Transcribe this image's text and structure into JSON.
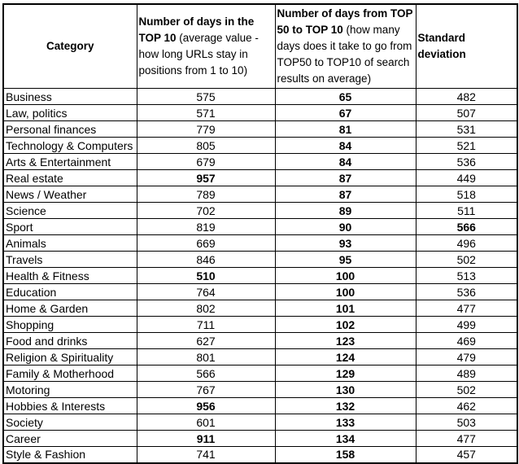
{
  "colors": {
    "border": "#000000",
    "text": "#000000",
    "background": "#ffffff"
  },
  "table": {
    "headers": [
      {
        "title": "Category",
        "subtitle": ""
      },
      {
        "title": "Number of days in the TOP 10",
        "subtitle": " (average value - how long URLs stay in positions from 1 to 10)"
      },
      {
        "title": "Number of days from TOP 50 to TOP 10",
        "subtitle": " (how many days does it take to go from TOP50 to TOP10 of search results on average)"
      },
      {
        "title": "Standard deviation",
        "subtitle": ""
      }
    ],
    "rows": [
      {
        "category": "Business",
        "top10_days": "575",
        "top10_bold": false,
        "transition_days": "65",
        "std_dev": "482",
        "std_bold": false
      },
      {
        "category": "Law, politics",
        "top10_days": "571",
        "top10_bold": false,
        "transition_days": "67",
        "std_dev": "507",
        "std_bold": false
      },
      {
        "category": "Personal finances",
        "top10_days": "779",
        "top10_bold": false,
        "transition_days": "81",
        "std_dev": "531",
        "std_bold": false
      },
      {
        "category": "Technology & Computers",
        "top10_days": "805",
        "top10_bold": false,
        "transition_days": "84",
        "std_dev": "521",
        "std_bold": false
      },
      {
        "category": "Arts & Entertainment",
        "top10_days": "679",
        "top10_bold": false,
        "transition_days": "84",
        "std_dev": "536",
        "std_bold": false
      },
      {
        "category": "Real estate",
        "top10_days": "957",
        "top10_bold": true,
        "transition_days": "87",
        "std_dev": "449",
        "std_bold": false
      },
      {
        "category": "News / Weather",
        "top10_days": "789",
        "top10_bold": false,
        "transition_days": "87",
        "std_dev": "518",
        "std_bold": false
      },
      {
        "category": "Science",
        "top10_days": "702",
        "top10_bold": false,
        "transition_days": "89",
        "std_dev": "511",
        "std_bold": false
      },
      {
        "category": "Sport",
        "top10_days": "819",
        "top10_bold": false,
        "transition_days": "90",
        "std_dev": "566",
        "std_bold": true
      },
      {
        "category": "Animals",
        "top10_days": "669",
        "top10_bold": false,
        "transition_days": "93",
        "std_dev": "496",
        "std_bold": false
      },
      {
        "category": "Travels",
        "top10_days": "846",
        "top10_bold": false,
        "transition_days": "95",
        "std_dev": "502",
        "std_bold": false
      },
      {
        "category": "Health & Fitness",
        "top10_days": "510",
        "top10_bold": true,
        "transition_days": "100",
        "std_dev": "513",
        "std_bold": false
      },
      {
        "category": "Education",
        "top10_days": "764",
        "top10_bold": false,
        "transition_days": "100",
        "std_dev": "536",
        "std_bold": false
      },
      {
        "category": "Home & Garden",
        "top10_days": "802",
        "top10_bold": false,
        "transition_days": "101",
        "std_dev": "477",
        "std_bold": false
      },
      {
        "category": "Shopping",
        "top10_days": "711",
        "top10_bold": false,
        "transition_days": "102",
        "std_dev": "499",
        "std_bold": false
      },
      {
        "category": "Food and drinks",
        "top10_days": "627",
        "top10_bold": false,
        "transition_days": "123",
        "std_dev": "469",
        "std_bold": false
      },
      {
        "category": "Religion & Spirituality",
        "top10_days": "801",
        "top10_bold": false,
        "transition_days": "124",
        "std_dev": "479",
        "std_bold": false
      },
      {
        "category": "Family & Motherhood",
        "top10_days": "566",
        "top10_bold": false,
        "transition_days": "129",
        "std_dev": "489",
        "std_bold": false
      },
      {
        "category": "Motoring",
        "top10_days": "767",
        "top10_bold": false,
        "transition_days": "130",
        "std_dev": "502",
        "std_bold": false
      },
      {
        "category": "Hobbies & Interests",
        "top10_days": "956",
        "top10_bold": true,
        "transition_days": "132",
        "std_dev": "462",
        "std_bold": false
      },
      {
        "category": "Society",
        "top10_days": "601",
        "top10_bold": false,
        "transition_days": "133",
        "std_dev": "503",
        "std_bold": false
      },
      {
        "category": "Career",
        "top10_days": "911",
        "top10_bold": true,
        "transition_days": "134",
        "std_dev": "477",
        "std_bold": false
      },
      {
        "category": "Style & Fashion",
        "top10_days": "741",
        "top10_bold": false,
        "transition_days": "158",
        "std_dev": "457",
        "std_bold": false
      }
    ]
  }
}
